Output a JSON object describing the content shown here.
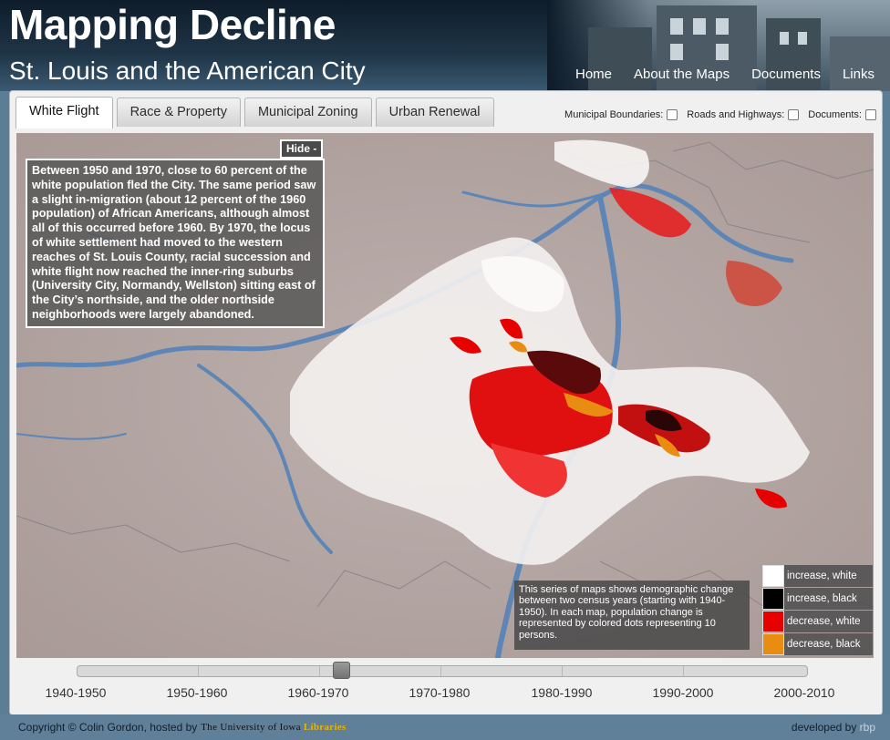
{
  "header": {
    "title": "Mapping Decline",
    "subtitle": "St. Louis and the American City",
    "nav": [
      "Home",
      "About the Maps",
      "Documents",
      "Links"
    ]
  },
  "tabs": [
    {
      "label": "White Flight",
      "active": true
    },
    {
      "label": "Race & Property",
      "active": false
    },
    {
      "label": "Municipal Zoning",
      "active": false
    },
    {
      "label": "Urban Renewal",
      "active": false
    }
  ],
  "layers": {
    "municipal": "Municipal Boundaries:",
    "roads": "Roads and Highways:",
    "documents": "Documents:"
  },
  "map": {
    "hide_label": "Hide -",
    "description": "Between 1950 and 1970, close to 60 percent of the white population fled the City. The same period saw a slight in-migration (about 12 percent of the 1960 population) of African Americans, although almost all of this occurred before 1960. By 1970, the locus of white settlement had moved to the western reaches of St. Louis County, racial succession and white flight now reached the inner-ring suburbs (University City, Normandy, Wellston) sitting east of the City’s northside, and the older northside neighborhoods were largely abandoned.",
    "note": "This series of maps shows demographic change between two census years (starting with 1940-1950). In each map, population change is represented by colored dots representing 10 persons.",
    "legend": [
      {
        "label": "increase, white",
        "color": "#ffffff"
      },
      {
        "label": "increase, black",
        "color": "#000000"
      },
      {
        "label": "decrease, white",
        "color": "#e60000"
      },
      {
        "label": "decrease, black",
        "color": "#e88c12"
      }
    ],
    "colors": {
      "land": "#b6a7a4",
      "river": "#5d86b7",
      "boundary": "#8b8583"
    }
  },
  "timeline": {
    "periods": [
      "1940-1950",
      "1950-1960",
      "1960-1970",
      "1970-1980",
      "1980-1990",
      "1990-2000",
      "2000-2010"
    ],
    "selected_index": 2
  },
  "footer": {
    "copyright": "Copyright © Colin Gordon, hosted by",
    "logo_main": "The University of Iowa",
    "logo_accent": "Libraries",
    "developed_prefix": "developed by",
    "developer": "rbp"
  }
}
